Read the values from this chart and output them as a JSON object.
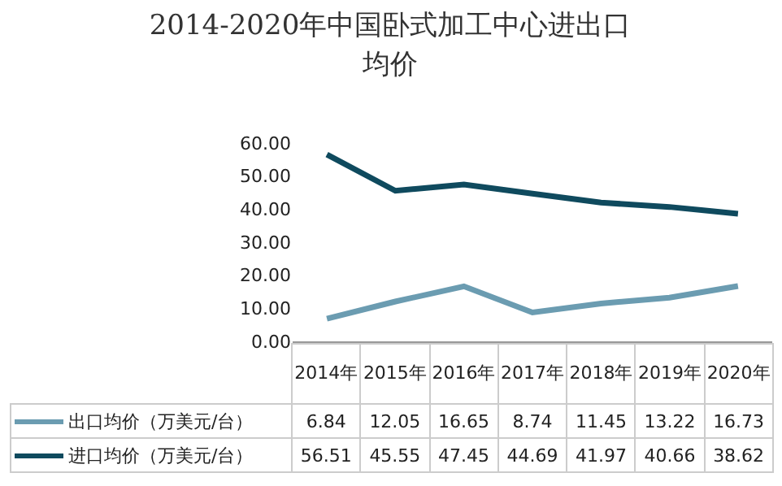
{
  "chart_data": {
    "type": "line",
    "title": "2014-2020年中国卧式加工中心进出口均价",
    "categories": [
      "2014年",
      "2015年",
      "2016年",
      "2017年",
      "2018年",
      "2019年",
      "2020年"
    ],
    "series": [
      {
        "name": "出口均价（万美元/台）",
        "color": "#6b9cb1",
        "values": [
          6.84,
          12.05,
          16.65,
          8.74,
          11.45,
          13.22,
          16.73
        ]
      },
      {
        "name": "进口均价（万美元/台）",
        "color": "#0f4a5e",
        "values": [
          56.51,
          45.55,
          47.45,
          44.69,
          41.97,
          40.66,
          38.62
        ]
      }
    ],
    "ylim": [
      0,
      60
    ],
    "yticks": [
      {
        "value": 0,
        "label": "0.00"
      },
      {
        "value": 10,
        "label": "10.00"
      },
      {
        "value": 20,
        "label": "20.00"
      },
      {
        "value": 30,
        "label": "30.00"
      },
      {
        "value": 40,
        "label": "40.00"
      },
      {
        "value": 50,
        "label": "50.00"
      },
      {
        "value": 60,
        "label": "60.00"
      }
    ],
    "grid": false,
    "legend": "bottom",
    "data_labels": true,
    "marker": "none",
    "line_style": "solid"
  }
}
